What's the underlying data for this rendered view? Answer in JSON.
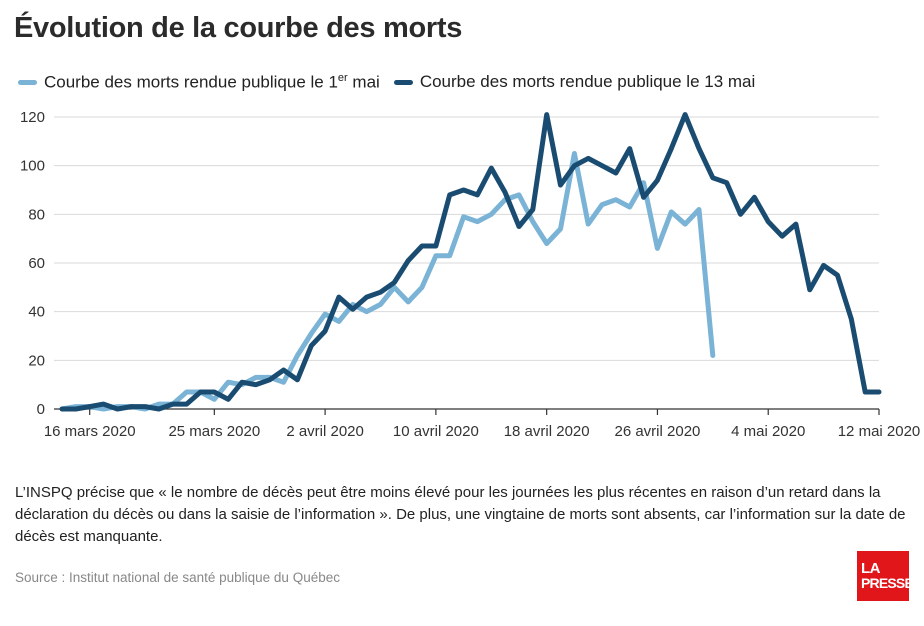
{
  "title": "Évolution de la courbe des morts",
  "legend": {
    "series1_label_before": "Courbe des morts rendue publique le 1",
    "series1_sup": "er",
    "series1_label_after": " mai",
    "series2_label": "Courbe des morts rendue publique le 13 mai"
  },
  "note": "L’INSPQ précise que « le nombre de décès peut être moins élevé pour les journées les plus récentes en raison d’un retard dans la déclaration du décès ou dans la saisie de l’information ». De plus, une vingtaine de morts sont absents, car l’information sur la date de décès est manquante.",
  "source": "Source : Institut national de santé publique du Québec",
  "logo": {
    "line1": "LA",
    "line2": "PRESSE"
  },
  "colors": {
    "series1": "#7ab3d6",
    "series2": "#1a4c72",
    "grid": "#d9d9d9",
    "axis": "#333333",
    "logo": "#e0161b"
  },
  "chart_data": {
    "type": "line",
    "x_axis_type": "date",
    "xlim": [
      "2020-03-14",
      "2020-05-12"
    ],
    "ylim": [
      0,
      120
    ],
    "yticks": [
      0,
      20,
      40,
      60,
      80,
      100,
      120
    ],
    "xticks": [
      {
        "date": "2020-03-16",
        "label": "16 mars 2020"
      },
      {
        "date": "2020-03-25",
        "label": "25 mars 2020"
      },
      {
        "date": "2020-04-02",
        "label": "2 avril 2020"
      },
      {
        "date": "2020-04-10",
        "label": "10 avril 2020"
      },
      {
        "date": "2020-04-18",
        "label": "18 avril 2020"
      },
      {
        "date": "2020-04-26",
        "label": "26 avril 2020"
      },
      {
        "date": "2020-05-04",
        "label": "4 mai 2020"
      },
      {
        "date": "2020-05-12",
        "label": "12 mai 2020"
      }
    ],
    "grid": "horizontal",
    "series": [
      {
        "name": "Courbe des morts rendue publique le 1er mai",
        "color": "#7ab3d6",
        "x": [
          "2020-03-14",
          "2020-03-15",
          "2020-03-16",
          "2020-03-17",
          "2020-03-18",
          "2020-03-19",
          "2020-03-20",
          "2020-03-21",
          "2020-03-22",
          "2020-03-23",
          "2020-03-24",
          "2020-03-25",
          "2020-03-26",
          "2020-03-27",
          "2020-03-28",
          "2020-03-29",
          "2020-03-30",
          "2020-03-31",
          "2020-04-01",
          "2020-04-02",
          "2020-04-03",
          "2020-04-04",
          "2020-04-05",
          "2020-04-06",
          "2020-04-07",
          "2020-04-08",
          "2020-04-09",
          "2020-04-10",
          "2020-04-11",
          "2020-04-12",
          "2020-04-13",
          "2020-04-14",
          "2020-04-15",
          "2020-04-16",
          "2020-04-17",
          "2020-04-18",
          "2020-04-19",
          "2020-04-20",
          "2020-04-21",
          "2020-04-22",
          "2020-04-23",
          "2020-04-24",
          "2020-04-25",
          "2020-04-26",
          "2020-04-27",
          "2020-04-28",
          "2020-04-29",
          "2020-04-30"
        ],
        "values": [
          0,
          1,
          1,
          0,
          1,
          1,
          0,
          2,
          2,
          7,
          7,
          4,
          11,
          10,
          13,
          13,
          11,
          22,
          31,
          39,
          36,
          43,
          40,
          43,
          50,
          44,
          50,
          63,
          63,
          79,
          77,
          80,
          86,
          88,
          77,
          68,
          74,
          105,
          76,
          84,
          86,
          83,
          93,
          66,
          81,
          76,
          82,
          22
        ]
      },
      {
        "name": "Courbe des morts rendue publique le 13 mai",
        "color": "#1a4c72",
        "x": [
          "2020-03-14",
          "2020-03-15",
          "2020-03-16",
          "2020-03-17",
          "2020-03-18",
          "2020-03-19",
          "2020-03-20",
          "2020-03-21",
          "2020-03-22",
          "2020-03-23",
          "2020-03-24",
          "2020-03-25",
          "2020-03-26",
          "2020-03-27",
          "2020-03-28",
          "2020-03-29",
          "2020-03-30",
          "2020-03-31",
          "2020-04-01",
          "2020-04-02",
          "2020-04-03",
          "2020-04-04",
          "2020-04-05",
          "2020-04-06",
          "2020-04-07",
          "2020-04-08",
          "2020-04-09",
          "2020-04-10",
          "2020-04-11",
          "2020-04-12",
          "2020-04-13",
          "2020-04-14",
          "2020-04-15",
          "2020-04-16",
          "2020-04-17",
          "2020-04-18",
          "2020-04-19",
          "2020-04-20",
          "2020-04-21",
          "2020-04-22",
          "2020-04-23",
          "2020-04-24",
          "2020-04-25",
          "2020-04-26",
          "2020-04-27",
          "2020-04-28",
          "2020-04-29",
          "2020-04-30",
          "2020-05-01",
          "2020-05-02",
          "2020-05-03",
          "2020-05-04",
          "2020-05-05",
          "2020-05-06",
          "2020-05-07",
          "2020-05-08",
          "2020-05-09",
          "2020-05-10",
          "2020-05-11",
          "2020-05-12"
        ],
        "values": [
          0,
          0,
          1,
          2,
          0,
          1,
          1,
          0,
          2,
          2,
          7,
          7,
          4,
          11,
          10,
          12,
          16,
          12,
          26,
          32,
          46,
          41,
          46,
          48,
          52,
          61,
          67,
          67,
          88,
          90,
          88,
          99,
          89,
          75,
          82,
          121,
          92,
          100,
          103,
          100,
          97,
          107,
          87,
          94,
          107,
          121,
          107,
          95,
          93,
          80,
          87,
          77,
          71,
          76,
          49,
          59,
          55,
          37,
          7,
          7
        ]
      }
    ]
  }
}
